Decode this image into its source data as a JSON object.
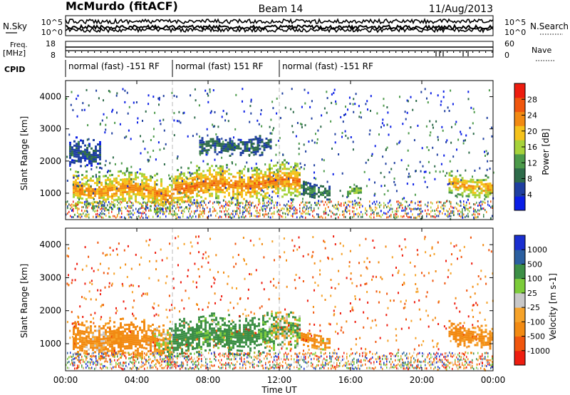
{
  "header": {
    "station": "McMurdo (fitACF)",
    "beam": "Beam 14",
    "date": "11/Aug/2013"
  },
  "noise_panel": {
    "left_label": "N.Sky",
    "right_label": "N.Search",
    "left_ticks": [
      "10^5",
      "10^0"
    ],
    "right_ticks": [
      "10^5",
      "10^0"
    ]
  },
  "freq_panel": {
    "left_label_line1": "Freq.",
    "left_label_line2": "[MHz]",
    "right_label": "Nave",
    "left_ticks": [
      "18",
      "8"
    ],
    "right_ticks": [
      "60",
      "0"
    ]
  },
  "cpid": {
    "label": "CPID",
    "segments": [
      {
        "text": "normal (fast) -151 RF",
        "start_hour": 0,
        "end_hour": 6
      },
      {
        "text": "normal (fast) 151 RF",
        "start_hour": 6,
        "end_hour": 12
      },
      {
        "text": "normal (fast) -151 RF",
        "start_hour": 12,
        "end_hour": 24
      }
    ]
  },
  "colors": {
    "power_scale": [
      "#0a1ee6",
      "#1f3fa0",
      "#2e6b4a",
      "#4c9a4a",
      "#a6d23a",
      "#f5c21b",
      "#f28a12",
      "#f0560d",
      "#ee1d0f"
    ],
    "velocity_scale": [
      "#ee1d0f",
      "#f0560d",
      "#f28a12",
      "#f6a32a",
      "#c8c8c8",
      "#7ccc3a",
      "#3c8f46",
      "#2b5fa0",
      "#1a2fd0"
    ]
  },
  "chart_data": [
    {
      "type": "heatmap",
      "name": "power",
      "ylabel": "Slant Range [km]",
      "x_range_hours": [
        0,
        24
      ],
      "ylim": [
        180,
        4500
      ],
      "yticks": [
        "1000",
        "2000",
        "3000",
        "4000"
      ],
      "colorbar_label": "Power [dB]",
      "colorbar_ticks": [
        "28",
        "24",
        "20",
        "16",
        "12",
        "8",
        "4"
      ],
      "colorbar_range": [
        0,
        32
      ],
      "echo_regions": [
        {
          "x": [
            0.4,
            6.0
          ],
          "y": [
            500,
            1700
          ],
          "value": 26
        },
        {
          "x": [
            6.0,
            13.2
          ],
          "y": [
            700,
            1900
          ],
          "value": 27
        },
        {
          "x": [
            13.2,
            14.8
          ],
          "y": [
            900,
            1400
          ],
          "value": 12
        },
        {
          "x": [
            15.8,
            16.6
          ],
          "y": [
            900,
            1300
          ],
          "value": 16
        },
        {
          "x": [
            21.5,
            24.0
          ],
          "y": [
            850,
            1600
          ],
          "value": 25
        },
        {
          "x": [
            0.2,
            2.0
          ],
          "y": [
            1800,
            2700
          ],
          "value": 8
        },
        {
          "x": [
            7.5,
            11.5
          ],
          "y": [
            2200,
            2800
          ],
          "value": 10
        }
      ]
    },
    {
      "type": "heatmap",
      "name": "velocity",
      "ylabel": "Slant Range [km]",
      "x_range_hours": [
        0,
        24
      ],
      "ylim": [
        180,
        4500
      ],
      "yticks": [
        "1000",
        "2000",
        "3000",
        "4000"
      ],
      "colorbar_label": "Velocity [m s-1]",
      "colorbar_ticks": [
        "1000",
        "500",
        "100",
        "25",
        "-25",
        "-100",
        "-500",
        "-1000"
      ],
      "echo_regions": [
        {
          "x": [
            0.4,
            6.0
          ],
          "y": [
            500,
            1700
          ],
          "value": -150
        },
        {
          "x": [
            6.0,
            13.2
          ],
          "y": [
            700,
            1900
          ],
          "value": 200
        },
        {
          "x": [
            13.2,
            14.8
          ],
          "y": [
            900,
            1400
          ],
          "value": -200
        },
        {
          "x": [
            21.5,
            24.0
          ],
          "y": [
            850,
            1600
          ],
          "value": -200
        }
      ]
    }
  ],
  "x_axis": {
    "ticks": [
      "00:00",
      "04:00",
      "08:00",
      "12:00",
      "16:00",
      "20:00",
      "00:00"
    ],
    "label": "Time UT"
  }
}
